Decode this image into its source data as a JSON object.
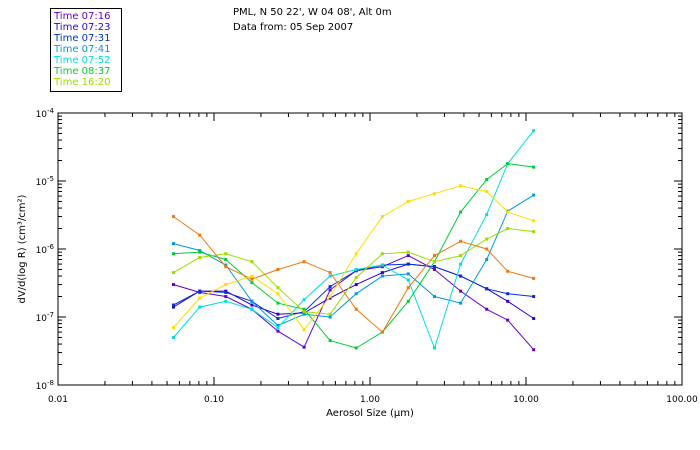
{
  "header": {
    "line1": "PML, N 50 22', W 04 08', Alt 0m",
    "line2": "Data from: 05 Sep 2007"
  },
  "chart_data": {
    "type": "line",
    "title": "",
    "xlabel": "Aerosol Size (µm)",
    "ylabel": "dV/d(log R) (cm³/cm²)",
    "xscale": "log",
    "yscale": "log",
    "xlim": [
      0.01,
      100
    ],
    "ylim": [
      1e-08,
      0.0001
    ],
    "grid": false,
    "legend_position": "top-left outside",
    "x_tick_labels": [
      "0.01",
      "0.10",
      "1.00",
      "10.00",
      "100.00"
    ],
    "x_tick_values": [
      0.01,
      0.1,
      1,
      10,
      100
    ],
    "y_tick_labels": [
      {
        "base": "10",
        "exp": "-8",
        "value": 1e-08
      },
      {
        "base": "10",
        "exp": "-7",
        "value": 1e-07
      },
      {
        "base": "10",
        "exp": "-6",
        "value": 1e-06
      },
      {
        "base": "10",
        "exp": "-5",
        "value": 1e-05
      },
      {
        "base": "10",
        "exp": "-4",
        "value": 0.0001
      }
    ],
    "x": [
      0.055,
      0.081,
      0.119,
      0.175,
      0.257,
      0.378,
      0.555,
      0.816,
      1.2,
      1.76,
      2.59,
      3.81,
      5.6,
      7.63,
      11.2
    ],
    "series": [
      {
        "name": "Time 07:16",
        "color": "#6600cc",
        "values": [
          3e-07,
          2.3e-07,
          2e-07,
          1.3e-07,
          6.2e-08,
          3.6e-08,
          2.5e-07,
          4.8e-07,
          5.5e-07,
          8e-07,
          5e-07,
          2.4e-07,
          1.3e-07,
          9e-08,
          3.3e-08
        ]
      },
      {
        "name": "Time 07:23",
        "color": "#3300cc",
        "values": [
          1.4e-07,
          2.4e-07,
          2.4e-07,
          1.5e-07,
          1.1e-07,
          1.15e-07,
          1.9e-07,
          3e-07,
          4.5e-07,
          6e-07,
          5.5e-07,
          4e-07,
          2.6e-07,
          1.7e-07,
          9.5e-08
        ]
      },
      {
        "name": "Time 07:31",
        "color": "#0033cc",
        "values": [
          1.5e-07,
          2.4e-07,
          2.3e-07,
          1.7e-07,
          9.5e-08,
          1.2e-07,
          2.8e-07,
          4.8e-07,
          5.8e-07,
          6e-07,
          5.5e-07,
          4e-07,
          2.6e-07,
          2.2e-07,
          2e-07
        ]
      },
      {
        "name": "Time 07:41",
        "color": "#0099dd",
        "values": [
          1.2e-06,
          9.5e-07,
          5.8e-07,
          1.7e-07,
          7.5e-08,
          1.1e-07,
          1e-07,
          2.2e-07,
          4e-07,
          4.3e-07,
          2e-07,
          1.6e-07,
          7e-07,
          3.6e-06,
          6.2e-06
        ]
      },
      {
        "name": "Time 07:52",
        "color": "#00dddd",
        "values": [
          5e-08,
          1.4e-07,
          1.7e-07,
          1.3e-07,
          7e-08,
          1.8e-07,
          4e-07,
          5e-07,
          5.8e-07,
          3.5e-07,
          3.5e-08,
          6e-07,
          3.2e-06,
          1.8e-05,
          5.5e-05
        ]
      },
      {
        "name": "Time 08:37",
        "color": "#00cc33",
        "values": [
          8.5e-07,
          9e-07,
          7e-07,
          3.2e-07,
          1.6e-07,
          1.3e-07,
          4.5e-08,
          3.5e-08,
          6e-08,
          1.7e-07,
          6.5e-07,
          3.5e-06,
          1.05e-05,
          1.8e-05,
          1.6e-05
        ]
      },
      {
        "name": "Time 16:20",
        "color": "#99dd00",
        "values": [
          4.5e-07,
          7.5e-07,
          8.5e-07,
          6.5e-07,
          2.7e-07,
          1.2e-07,
          1.1e-07,
          3.8e-07,
          8.5e-07,
          9e-07,
          6.5e-07,
          8e-07,
          1.4e-06,
          2e-06,
          1.8e-06
        ]
      },
      {
        "name": "",
        "color": "#ee7711",
        "values": [
          3e-06,
          1.6e-06,
          5.5e-07,
          3.6e-07,
          5e-07,
          6.5e-07,
          4.5e-07,
          1.3e-07,
          6e-08,
          2.7e-07,
          8e-07,
          1.3e-06,
          1e-06,
          4.7e-07,
          3.7e-07
        ]
      },
      {
        "name": "",
        "color": "#ffdd00",
        "values": [
          7e-08,
          1.9e-07,
          3e-07,
          4e-07,
          2.2e-07,
          6.5e-08,
          2e-07,
          8.5e-07,
          3e-06,
          5e-06,
          6.5e-06,
          8.5e-06,
          7e-06,
          3.5e-06,
          2.6e-06
        ]
      }
    ]
  }
}
